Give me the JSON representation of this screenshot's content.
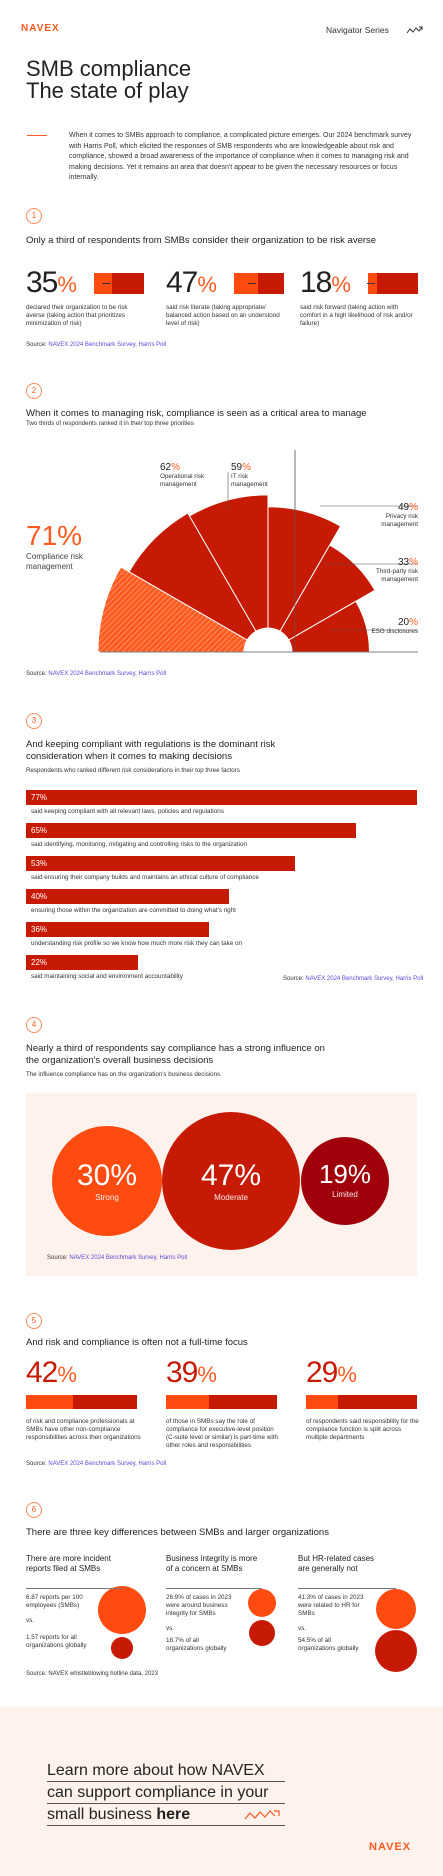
{
  "header": {
    "logo": "NAVEX",
    "series": "Navigator Series",
    "series_icon": "squiggle-arrow-icon"
  },
  "hero": {
    "title_line1": "SMB compliance",
    "title_line2": "The state of play",
    "intro": "When it comes to SMBs approach to compliance, a complicated picture emerges. Our 2024 benchmark survey with Harris Poll, which elicited the responses of SMB respondents who are knowledgeable about risk and compliance, showed a broad awareness of the importance of compliance when it comes to managing risk and making decisions. Yet it remains an area that doesn't appear to be given the necessary resources or focus internally."
  },
  "source_prefix": "Source:",
  "source_link": "NAVEX 2024 Benchmark Survey, Harris Poll",
  "section1": {
    "num": "1",
    "title": "Only a third of respondents from SMBs consider their organization to be risk averse",
    "stats": [
      {
        "value": "35",
        "unit": "%",
        "fill": 0.35,
        "desc": "declared their organization to be risk averse (taking action that prioritizes minimization of risk)"
      },
      {
        "value": "47",
        "unit": "%",
        "fill": 0.47,
        "desc": "said risk literate (taking appropriate/ balanced action based on an understood level of risk)"
      },
      {
        "value": "18",
        "unit": "%",
        "fill": 0.18,
        "desc": "said risk forward (taking action with comfort in a high likelihood of risk and/or failure)"
      }
    ]
  },
  "section2": {
    "num": "2",
    "title": "When it comes to managing risk, compliance is seen as a critical area to manage",
    "subtitle": "Two thirds of respondents ranked it in their top three priorities",
    "main": {
      "value": "71",
      "unit": "%",
      "label_line1": "Compliance risk",
      "label_line2": "management"
    },
    "chart_data": {
      "type": "polar-area",
      "categories": [
        "Compliance risk management",
        "Operational risk management",
        "IT risk management",
        "Privacy risk management",
        "Third-party risk management",
        "ESG disclosures"
      ],
      "values": [
        71,
        62,
        59,
        49,
        33,
        20
      ],
      "unit": "%"
    },
    "callouts": [
      {
        "value": "62",
        "unit": "%",
        "label_line1": "Operational risk",
        "label_line2": "management"
      },
      {
        "value": "59",
        "unit": "%",
        "label_line1": "IT risk",
        "label_line2": "management"
      },
      {
        "value": "49",
        "unit": "%",
        "label_line1": "Privacy risk",
        "label_line2": "management"
      },
      {
        "value": "33",
        "unit": "%",
        "label_line1": "Third-party risk",
        "label_line2": "management"
      },
      {
        "value": "20",
        "unit": "%",
        "label_line1": "ESG disclosures",
        "label_line2": ""
      }
    ]
  },
  "section3": {
    "num": "3",
    "title_line1": "And keeping compliant with regulations is the dominant risk",
    "title_line2": "consideration when it comes to making decisions",
    "subtitle": "Respondents who ranked different risk considerations in their top three factors",
    "chart_data": {
      "type": "bar",
      "orientation": "horizontal",
      "values": [
        77,
        65,
        53,
        40,
        36,
        22
      ],
      "categories": [
        "said keeping compliant with all relevant laws, policies and regulations",
        "said identifying, monitoring, mitigating and controlling risks to the organization",
        "said ensuring their company builds and maintains an ethical culture of compliance",
        "ensuring those within the organization are committed to doing what's right",
        "understanding risk profile so we know how much more risk they can take on",
        "said maintaining social and environment accountability"
      ],
      "unit": "%",
      "xlim": [
        0,
        77
      ]
    }
  },
  "section4": {
    "num": "4",
    "title_line1": "Nearly a third of respondents say compliance has a strong influence on",
    "title_line2": "the organization's overall business decisions",
    "subtitle": "The influence compliance has on the organization's business decisions",
    "chart_data": {
      "type": "bubble",
      "categories": [
        "Strong",
        "Moderate",
        "Limited"
      ],
      "values": [
        30,
        47,
        19
      ],
      "unit": "%",
      "colors": [
        "#ff4a10",
        "#c71a05",
        "#a0000a"
      ]
    }
  },
  "section5": {
    "num": "5",
    "title": "And risk and compliance is often not a full-time focus",
    "stats": [
      {
        "value": "42",
        "unit": "%",
        "fill": 0.42,
        "desc": "of risk and compliance professionals at SMBs have other non-compliance responsibilities across their organizations"
      },
      {
        "value": "39",
        "unit": "%",
        "fill": 0.39,
        "desc": "of those in SMBs say the role of compliance for executive-level position (C-suite level or similar) is part-time with other roles and responsibilities"
      },
      {
        "value": "29",
        "unit": "%",
        "fill": 0.29,
        "desc": "of respondents said responsibility for the compliance function is split across multiple departments"
      }
    ]
  },
  "section6": {
    "num": "6",
    "title": "There are three key differences between SMBs and larger organizations",
    "columns": [
      {
        "heading_line1": "There are more incident",
        "heading_line2": "reports filed at SMBs",
        "a_line1": "6.87 reports per 100",
        "a_line2": "employees (SMBs)",
        "a_line3": "",
        "vs": "vs.",
        "b_line1": "1.57 reports for all",
        "b_line2": "organizations globally"
      },
      {
        "heading_line1": "Business integrity is more",
        "heading_line2": "of a concern at SMBs",
        "a_line1": "26.9% of cases in 2023",
        "a_line2": "were around business",
        "a_line3": "integrity for SMBs",
        "vs": "vs.",
        "b_line1": "18.7% of all",
        "b_line2": "organizations globally"
      },
      {
        "heading_line1": "But HR-related cases",
        "heading_line2": "are generally not",
        "a_line1": "41.3% of cases in 2023",
        "a_line2": "were related to HR for",
        "a_line3": "SMBs",
        "vs": "vs.",
        "b_line1": "54.5% of all",
        "b_line2": "organizations globally"
      }
    ],
    "source": "Source: NAVEX whistleblowing hotline data, 2023"
  },
  "cta": {
    "line1": "Learn more about how NAVEX",
    "line2": "can support compliance in your",
    "line3_a": "small business ",
    "line3_b": "here",
    "arrow_icon": "squiggle-arrow-icon"
  },
  "footer": {
    "logo": "NAVEX"
  }
}
